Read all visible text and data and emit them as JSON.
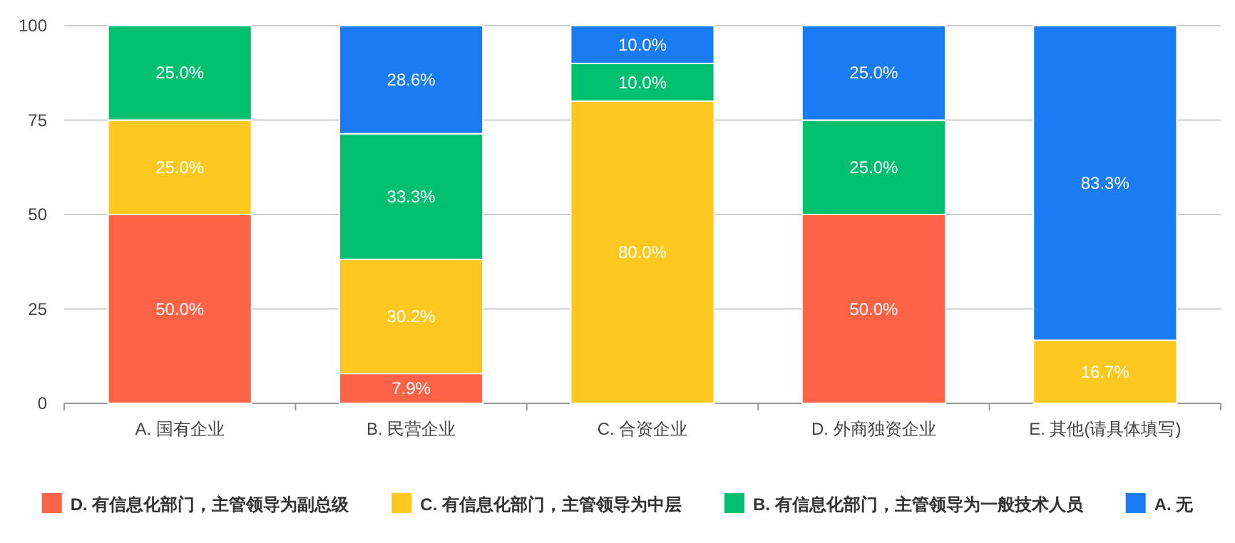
{
  "chart_data": {
    "type": "bar",
    "stacked": true,
    "categories": [
      "A. 国有企业",
      "B. 民营企业",
      "C. 合资企业",
      "D. 外商独资企业",
      "E. 其他(请具体填写)"
    ],
    "series": [
      {
        "name": "D. 有信息化部门，主管领导为副总级",
        "color": "#ff6347",
        "values": [
          50,
          7.9,
          null,
          50,
          null
        ],
        "value_labels": [
          "50.0%",
          "7.9%",
          null,
          "50.0%",
          null
        ]
      },
      {
        "name": "C. 有信息化部门，主管领导为中层",
        "color": "#ffc81e",
        "values": [
          25,
          30.2,
          80,
          null,
          16.7
        ],
        "value_labels": [
          "25.0%",
          "30.2%",
          "80.0%",
          null,
          "16.7%"
        ]
      },
      {
        "name": "B. 有信息化部门，主管领导为一般技术人员",
        "color": "#00c070",
        "values": [
          25,
          33.3,
          10,
          25,
          null
        ],
        "value_labels": [
          "25.0%",
          "33.3%",
          "10.0%",
          "25.0%",
          null
        ]
      },
      {
        "name": "A. 无",
        "color": "#1a7cf5",
        "values": [
          null,
          28.6,
          10,
          25,
          83.3
        ],
        "value_labels": [
          null,
          "28.6%",
          "10.0%",
          "25.0%",
          "83.3%"
        ]
      }
    ],
    "ylim": [
      0,
      100
    ],
    "yticks": [
      0,
      25,
      50,
      75,
      100
    ],
    "grid": "y",
    "legend": "bottom"
  }
}
